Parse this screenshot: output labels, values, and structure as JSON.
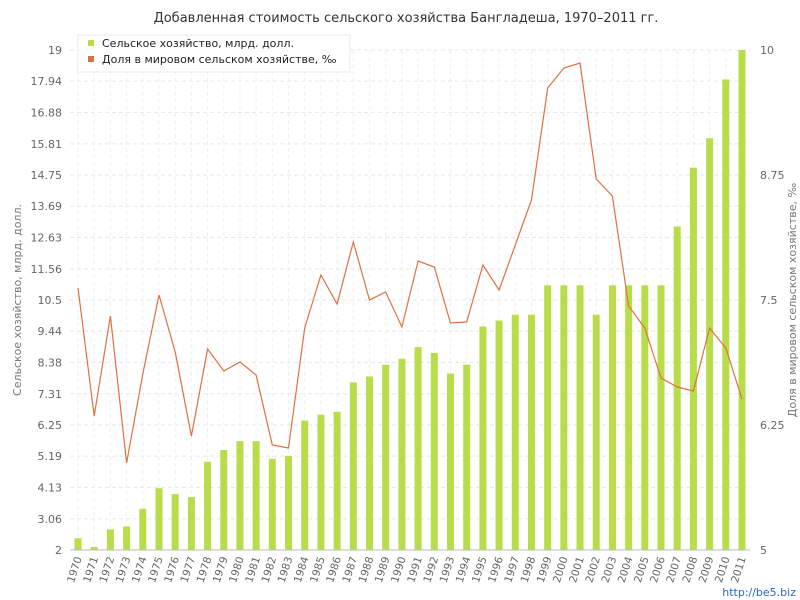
{
  "chart_data": {
    "type": "bar",
    "title": "Добавленная стоимость сельского хозяйства Бангладеша, 1970–2011 гг.",
    "ylabel_left": "Сельское хозяйство, млрд. долл.",
    "ylabel_right": "Доля в мировом сельском хозяйстве, ‰",
    "ylim_left": [
      2,
      19
    ],
    "ylim_right": [
      5,
      10
    ],
    "yticks_left": [
      "2",
      "3.06",
      "4.13",
      "5.19",
      "6.25",
      "7.31",
      "8.38",
      "9.44",
      "10.5",
      "11.56",
      "12.63",
      "13.69",
      "14.75",
      "15.81",
      "16.88",
      "17.94",
      "19"
    ],
    "yticks_right": [
      "5",
      "6.25",
      "7.5",
      "8.75",
      "10"
    ],
    "grid": true,
    "legend_position": "top-left",
    "categories": [
      "1970",
      "1971",
      "1972",
      "1973",
      "1974",
      "1975",
      "1976",
      "1977",
      "1978",
      "1979",
      "1980",
      "1981",
      "1982",
      "1983",
      "1984",
      "1985",
      "1986",
      "1987",
      "1988",
      "1989",
      "1990",
      "1991",
      "1992",
      "1993",
      "1994",
      "1995",
      "1996",
      "1997",
      "1998",
      "1999",
      "2000",
      "2001",
      "2002",
      "2003",
      "2004",
      "2005",
      "2006",
      "2007",
      "2008",
      "2009",
      "2010",
      "2011"
    ],
    "series": [
      {
        "name": "Сельское хозяйство, млрд. долл.",
        "type": "bar",
        "axis": "left",
        "color": "#b8dc4a",
        "values": [
          2.4,
          2.1,
          2.7,
          2.8,
          3.4,
          4.1,
          3.9,
          3.8,
          5.0,
          5.4,
          5.7,
          5.7,
          5.1,
          5.2,
          6.4,
          6.6,
          6.7,
          7.7,
          7.9,
          8.3,
          8.5,
          8.9,
          8.7,
          8.0,
          8.3,
          9.6,
          9.8,
          10.0,
          10.0,
          11.0,
          11.0,
          11.0,
          10.0,
          11.0,
          11.0,
          11.0,
          11.0,
          13.0,
          15.0,
          16.0,
          18.0,
          19.0
        ]
      },
      {
        "name": "Доля в мировом сельском хозяйстве, ‰",
        "type": "line",
        "axis": "right",
        "color": "#e07040",
        "values": [
          7.62,
          6.34,
          7.34,
          5.87,
          6.76,
          7.55,
          6.98,
          6.14,
          7.01,
          6.79,
          6.88,
          6.75,
          6.05,
          6.02,
          7.22,
          7.75,
          7.46,
          8.08,
          7.5,
          7.58,
          7.23,
          7.89,
          7.83,
          7.27,
          7.28,
          7.85,
          7.6,
          8.05,
          8.5,
          9.62,
          9.82,
          9.87,
          8.71,
          8.54,
          7.44,
          7.22,
          6.72,
          6.63,
          6.59,
          7.22,
          7.02,
          6.51
        ]
      }
    ]
  },
  "watermark": "http://be5.biz"
}
